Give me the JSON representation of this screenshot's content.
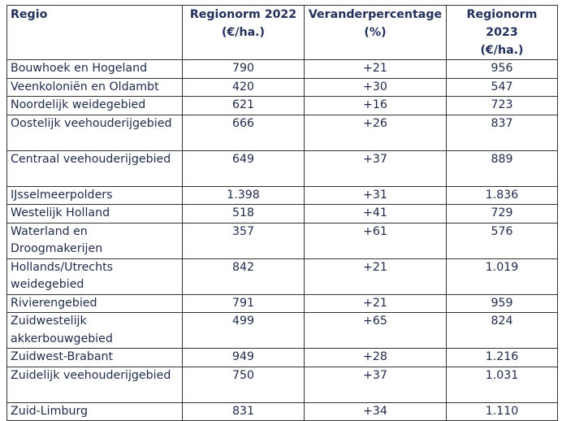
{
  "table": {
    "headers": {
      "regio": "Regio",
      "norm2022_line1": "Regionorm 2022",
      "norm2022_line2": "(€/ha.)",
      "verander_line1": "Veranderpercentage",
      "verander_line2": "(%)",
      "norm2023_line1": "Regionorm 2023",
      "norm2023_line2": "(€/ha.)"
    },
    "rows": [
      {
        "regio": "Bouwhoek en Hogeland",
        "norm2022": "790",
        "verander": "+21",
        "norm2023": "956"
      },
      {
        "regio": "Veenkoloniën en Oldambt",
        "norm2022": "420",
        "verander": "+30",
        "norm2023": "547"
      },
      {
        "regio": "Noordelijk weidegebied",
        "norm2022": "621",
        "verander": "+16",
        "norm2023": "723"
      },
      {
        "regio": "Oostelijk veehouderijgebied",
        "norm2022": "666",
        "verander": "+26",
        "norm2023": "837"
      },
      {
        "regio": "Centraal veehouderijgebied",
        "norm2022": "649",
        "verander": "+37",
        "norm2023": "889"
      },
      {
        "regio": "IJsselmeerpolders",
        "norm2022": "1.398",
        "verander": "+31",
        "norm2023": "1.836"
      },
      {
        "regio": "Westelijk Holland",
        "norm2022": "518",
        "verander": "+41",
        "norm2023": "729"
      },
      {
        "regio": "Waterland en Droogmakerijen",
        "norm2022": "357",
        "verander": "+61",
        "norm2023": "576"
      },
      {
        "regio": "Hollands/Utrechts weidegebied",
        "norm2022": "842",
        "verander": "+21",
        "norm2023": "1.019"
      },
      {
        "regio": "Rivierengebied",
        "norm2022": "791",
        "verander": "+21",
        "norm2023": "959"
      },
      {
        "regio": "Zuidwestelijk akkerbouwgebied",
        "norm2022": "499",
        "verander": "+65",
        "norm2023": "824"
      },
      {
        "regio": "Zuidwest-Brabant",
        "norm2022": "949",
        "verander": "+28",
        "norm2023": "1.216"
      },
      {
        "regio": "Zuidelijk veehouderijgebied",
        "norm2022": "750",
        "verander": "+37",
        "norm2023": "1.031"
      },
      {
        "regio": "Zuid-Limburg",
        "norm2022": "831",
        "verander": "+34",
        "norm2023": "1.110"
      }
    ]
  }
}
